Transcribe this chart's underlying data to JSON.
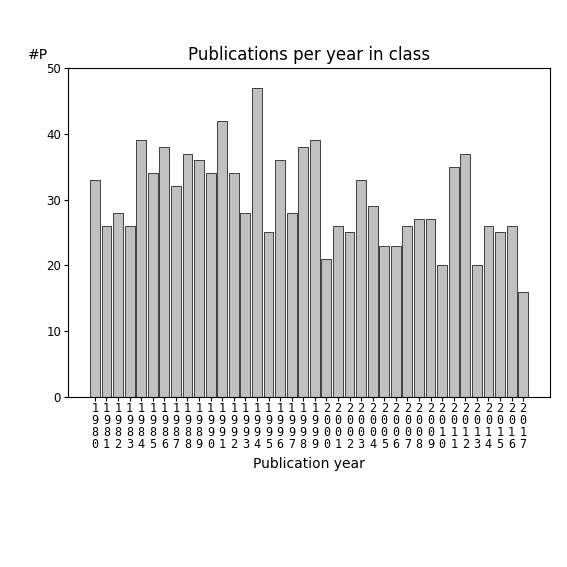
{
  "title": "Publications per year in class",
  "xlabel": "Publication year",
  "ylabel": "#P",
  "years": [
    1980,
    1981,
    1982,
    1983,
    1984,
    1985,
    1986,
    1987,
    1988,
    1989,
    1990,
    1991,
    1992,
    1993,
    1994,
    1995,
    1996,
    1997,
    1998,
    1999,
    2000,
    2001,
    2002,
    2003,
    2004,
    2005,
    2006,
    2007,
    2008,
    2009,
    2010,
    2011,
    2012,
    2013,
    2014,
    2015,
    2016,
    2017
  ],
  "values": [
    33,
    26,
    28,
    26,
    39,
    34,
    38,
    32,
    37,
    36,
    34,
    42,
    34,
    28,
    47,
    25,
    36,
    28,
    38,
    39,
    21,
    26,
    25,
    33,
    29,
    23,
    23,
    26,
    27,
    27,
    20,
    35,
    37,
    20,
    26,
    25,
    26,
    16
  ],
  "bar_color": "#c0c0c0",
  "bar_edgecolor": "#000000",
  "ylim": [
    0,
    50
  ],
  "yticks": [
    0,
    10,
    20,
    30,
    40,
    50
  ],
  "background_color": "#ffffff",
  "title_fontsize": 12,
  "axis_fontsize": 10,
  "tick_fontsize": 8.5
}
